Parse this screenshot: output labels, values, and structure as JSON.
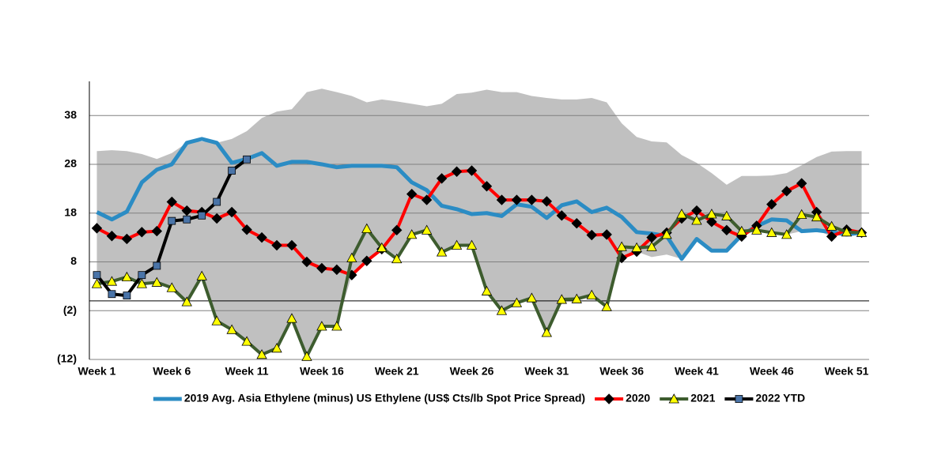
{
  "chart_data": {
    "type": "line",
    "categories": [
      "Week 1",
      null,
      null,
      null,
      null,
      "Week 6",
      null,
      null,
      null,
      null,
      "Week 11",
      null,
      null,
      null,
      null,
      "Week 16",
      null,
      null,
      null,
      null,
      "Week 21",
      null,
      null,
      null,
      null,
      "Week 26",
      null,
      null,
      null,
      null,
      "Week 31",
      null,
      null,
      null,
      null,
      "Week 36",
      null,
      null,
      null,
      null,
      "Week 41",
      null,
      null,
      null,
      null,
      "Week 46",
      null,
      null,
      null,
      null,
      "Week 51",
      null
    ],
    "band": {
      "color": "#c0c0c0",
      "upper": [
        30.7,
        30.9,
        30.7,
        30.1,
        29.1,
        30.3,
        32.4,
        32.7,
        32.4,
        33.2,
        34.8,
        37.5,
        38.8,
        39.3,
        42.8,
        43.5,
        42.8,
        42,
        40.7,
        41.3,
        40.9,
        40.4,
        39.9,
        40.4,
        42.4,
        42.7,
        43.3,
        42.8,
        42.8,
        42,
        41.6,
        41.3,
        41.3,
        41.6,
        40.7,
        36.4,
        33.6,
        32.7,
        32.5,
        29.9,
        28.3,
        26.2,
        23.8,
        25.6,
        25.6,
        25.7,
        26.2,
        27.8,
        29.5,
        30.6,
        30.7,
        30.7
      ],
      "lower": [
        3.5,
        4,
        4.9,
        3.5,
        3.8,
        2.7,
        -0.2,
        5.1,
        -4.1,
        -5.9,
        -8.3,
        -11,
        -9.7,
        -3.6,
        -11.4,
        -5.2,
        -5.2,
        5.3,
        8.2,
        10.6,
        8.6,
        13.6,
        14.5,
        10,
        11.4,
        11.4,
        2,
        -2,
        -0.4,
        0.6,
        -6.5,
        0.3,
        0.4,
        1.2,
        -1.2,
        8.8,
        10.1,
        9,
        9.5,
        8.6,
        12.7,
        10.3,
        10.3,
        13.2,
        14.5,
        14,
        13.6,
        14.3,
        14.5,
        13.2,
        13.6,
        14
      ]
    },
    "series": [
      {
        "name": "2019 Avg. Asia Ethylene (minus) US Ethylene (US$ Cts/lb Spot Price Spread)",
        "color": "#2b8cc4",
        "marker": "none",
        "values": [
          18.2,
          16.7,
          18.3,
          24.3,
          26.9,
          28,
          32.4,
          33.2,
          32.4,
          28.3,
          29.1,
          30.3,
          27.7,
          28.5,
          28.5,
          28,
          27.4,
          27.7,
          27.7,
          27.7,
          27.4,
          24.3,
          22.7,
          19.5,
          18.8,
          17.8,
          18,
          17.4,
          19.8,
          19.3,
          17,
          19.6,
          20.4,
          18.2,
          19.1,
          17.2,
          14.1,
          13.8,
          13.3,
          8.6,
          12.7,
          10.3,
          10.3,
          13.5,
          15.3,
          16.7,
          16.5,
          14.3,
          14.5,
          14.1,
          13.6,
          14
        ]
      },
      {
        "name": "2020",
        "color": "#ff0000",
        "marker": "diamond",
        "marker_color": "#000000",
        "values": [
          14.9,
          13.3,
          12.7,
          14.1,
          14.3,
          20.3,
          18.5,
          18.2,
          16.9,
          18.2,
          14.6,
          13,
          11.4,
          11.4,
          8,
          6.7,
          6.4,
          5.3,
          8.2,
          10.6,
          14.5,
          21.9,
          20.7,
          25.1,
          26.5,
          26.7,
          23.5,
          20.7,
          20.7,
          20.7,
          20.4,
          17.5,
          15.9,
          13.5,
          13.6,
          8.8,
          10.1,
          13,
          14,
          16.9,
          18.5,
          16.2,
          14.5,
          13.2,
          15.4,
          19.8,
          22.5,
          24.1,
          18.2,
          13.2,
          14.6,
          14
        ]
      },
      {
        "name": "2021",
        "color": "#3d5c2e",
        "marker": "triangle",
        "marker_color": "#ffff00",
        "values": [
          3.5,
          4,
          4.9,
          3.5,
          3.8,
          2.7,
          -0.2,
          5.1,
          -4.1,
          -5.9,
          -8.3,
          -11,
          -9.7,
          -3.6,
          -11.4,
          -5.2,
          -5.2,
          8.8,
          14.8,
          10.9,
          8.6,
          13.6,
          14.5,
          10,
          11.4,
          11.4,
          2,
          -2,
          -0.4,
          0.6,
          -6.5,
          0.3,
          0.4,
          1.2,
          -1.2,
          11.1,
          10.9,
          11.1,
          13.6,
          17.8,
          16.5,
          17.8,
          17.4,
          14.3,
          14.5,
          14,
          13.6,
          17.7,
          17.2,
          15.3,
          14.1,
          14
        ]
      },
      {
        "name": "2022 YTD",
        "color": "#000000",
        "marker": "square",
        "marker_color": "#4a74a8",
        "values": [
          5.3,
          1.4,
          1.1,
          5.3,
          7.2,
          16.4,
          16.7,
          17.5,
          20.3,
          26.7,
          29,
          null,
          null,
          null,
          null,
          null,
          null,
          null,
          null,
          null,
          null,
          null,
          null,
          null,
          null,
          null,
          null,
          null,
          null,
          null,
          null,
          null,
          null,
          null,
          null,
          null,
          null,
          null,
          null,
          null,
          null,
          null,
          null,
          null,
          null,
          null,
          null,
          null,
          null,
          null,
          null,
          null
        ]
      }
    ],
    "ylim": [
      -12,
      45
    ],
    "yticks": [
      {
        "value": -12,
        "label": "(12)"
      },
      {
        "value": -2,
        "label": "(2)"
      },
      8,
      18,
      28,
      38
    ],
    "grid": true,
    "legend": "bottom"
  }
}
